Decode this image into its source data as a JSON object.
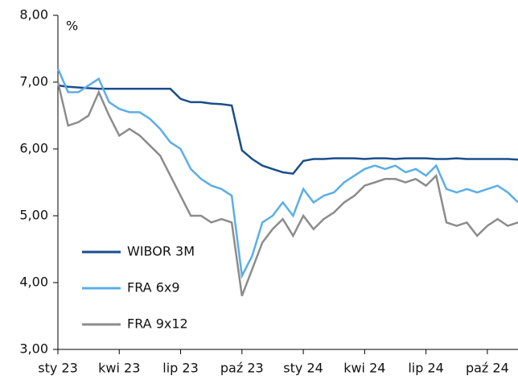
{
  "chart_data": {
    "type": "line",
    "y_label": "%",
    "x": [
      0,
      0.5,
      1,
      1.5,
      2,
      2.5,
      3,
      3.5,
      4,
      4.5,
      5,
      5.5,
      6,
      6.5,
      7,
      7.5,
      8,
      8.5,
      9,
      9.5,
      10,
      10.5,
      11,
      11.5,
      12,
      12.5,
      13,
      13.5,
      14,
      14.5,
      15,
      15.5,
      16,
      16.5,
      17,
      17.5,
      18,
      18.5,
      19,
      19.5,
      20,
      20.5,
      21,
      21.5,
      22,
      22.5
    ],
    "series": [
      {
        "name": "WIBOR 3M",
        "color": "#1a4e8c",
        "values": [
          6.95,
          6.93,
          6.92,
          6.91,
          6.9,
          6.9,
          6.9,
          6.9,
          6.9,
          6.9,
          6.9,
          6.9,
          6.75,
          6.7,
          6.7,
          6.68,
          6.67,
          6.65,
          5.98,
          5.85,
          5.75,
          5.7,
          5.65,
          5.63,
          5.82,
          5.85,
          5.85,
          5.86,
          5.86,
          5.86,
          5.85,
          5.86,
          5.86,
          5.85,
          5.86,
          5.86,
          5.86,
          5.85,
          5.85,
          5.86,
          5.85,
          5.85,
          5.85,
          5.85,
          5.85,
          5.84
        ]
      },
      {
        "name": "FRA 6x9",
        "color": "#5aaee8",
        "values": [
          7.2,
          6.85,
          6.85,
          6.95,
          7.05,
          6.7,
          6.6,
          6.55,
          6.55,
          6.45,
          6.3,
          6.1,
          6.0,
          5.7,
          5.55,
          5.45,
          5.4,
          5.3,
          4.1,
          4.4,
          4.9,
          5.0,
          5.2,
          5.0,
          5.4,
          5.2,
          5.3,
          5.35,
          5.5,
          5.6,
          5.7,
          5.75,
          5.7,
          5.75,
          5.65,
          5.7,
          5.6,
          5.75,
          5.4,
          5.35,
          5.4,
          5.35,
          5.4,
          5.45,
          5.35,
          5.2
        ]
      },
      {
        "name": "FRA 9x12",
        "color": "#8c8c8c",
        "values": [
          7.0,
          6.35,
          6.4,
          6.5,
          6.85,
          6.5,
          6.2,
          6.3,
          6.2,
          6.05,
          5.9,
          5.6,
          5.3,
          5.0,
          5.0,
          4.9,
          4.95,
          4.9,
          3.8,
          4.2,
          4.6,
          4.8,
          4.95,
          4.7,
          5.0,
          4.8,
          4.95,
          5.05,
          5.2,
          5.3,
          5.45,
          5.5,
          5.55,
          5.55,
          5.5,
          5.55,
          5.45,
          5.6,
          4.9,
          4.85,
          4.9,
          4.7,
          4.85,
          4.95,
          4.85,
          4.9
        ]
      }
    ],
    "xlim": [
      0,
      22.5
    ],
    "xticks": [
      {
        "value": 0,
        "label": "sty 23"
      },
      {
        "value": 3,
        "label": "kwi 23"
      },
      {
        "value": 6,
        "label": "lip 23"
      },
      {
        "value": 9,
        "label": "paź 23"
      },
      {
        "value": 12,
        "label": "sty 24"
      },
      {
        "value": 15,
        "label": "kwi 24"
      },
      {
        "value": 18,
        "label": "lip 24"
      },
      {
        "value": 21,
        "label": "paź 24"
      }
    ],
    "ylim": [
      3,
      8
    ],
    "yticks": [
      {
        "value": 3,
        "label": "3,00"
      },
      {
        "value": 4,
        "label": "4,00"
      },
      {
        "value": 5,
        "label": "5,00"
      },
      {
        "value": 6,
        "label": "6,00"
      },
      {
        "value": 7,
        "label": "7,00"
      },
      {
        "value": 8,
        "label": "8,00"
      }
    ],
    "legend": "lower-left"
  }
}
